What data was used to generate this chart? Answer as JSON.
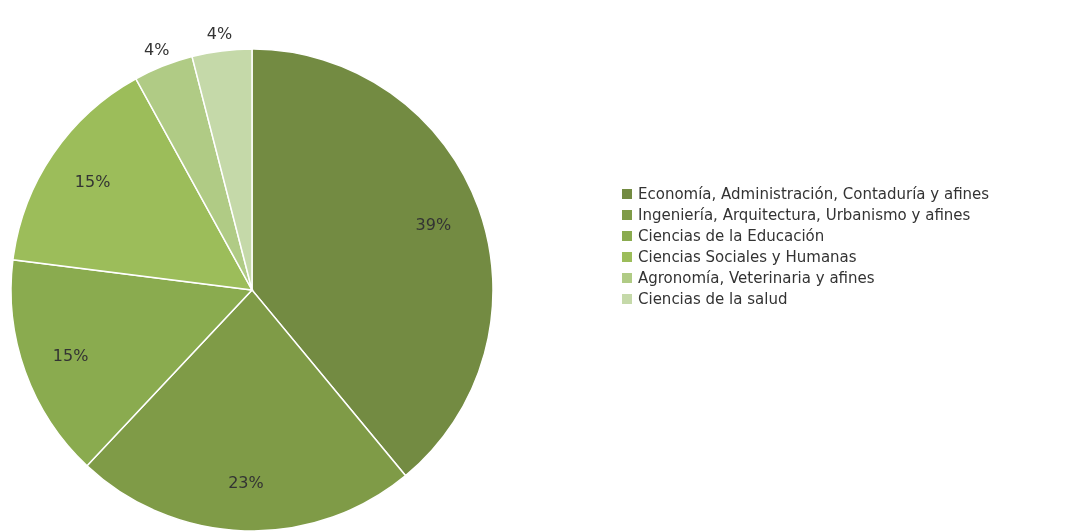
{
  "chart_data": {
    "type": "pie",
    "categories": [
      "Economía, Administración, Contaduría y afines",
      "Ingeniería, Arquitectura, Urbanismo y afines",
      "Ciencias de la Educación",
      "Ciencias Sociales y Humanas",
      "Agronomía, Veterinaria y afines",
      "Ciencias de la salud"
    ],
    "values": [
      39,
      23,
      15,
      15,
      4,
      4
    ],
    "colors": [
      "#738b42",
      "#7f9b47",
      "#8aab4f",
      "#9cbd5a",
      "#b0cb85",
      "#c5d9a9"
    ],
    "value_labels": [
      "39%",
      "23%",
      "15%",
      "15%",
      "4%",
      "4%"
    ],
    "legend": "right"
  }
}
